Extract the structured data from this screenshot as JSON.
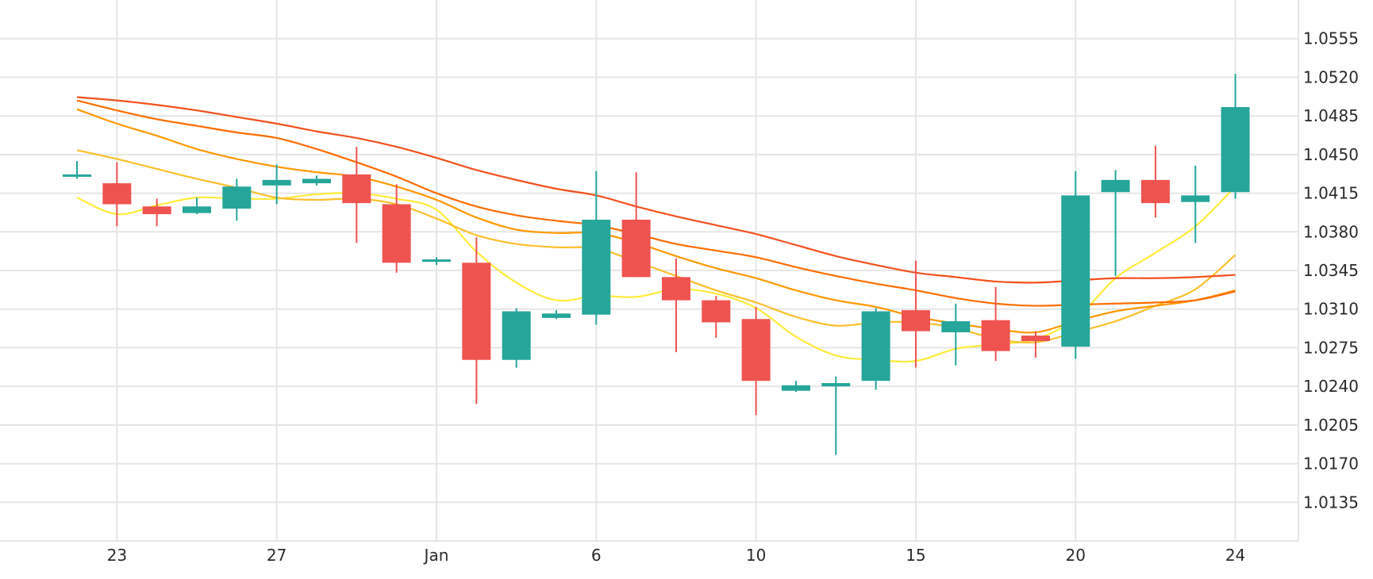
{
  "chart_data": {
    "type": "candlestick",
    "x_tick_labels": [
      "23",
      "27",
      "Jan",
      "6",
      "10",
      "15",
      "20",
      "24"
    ],
    "y_tick_labels": [
      "1.0555",
      "1.0520",
      "1.0485",
      "1.0450",
      "1.0415",
      "1.0380",
      "1.0345",
      "1.0310",
      "1.0275",
      "1.0240",
      "1.0205",
      "1.0170",
      "1.0135"
    ],
    "ylim": [
      1.01,
      1.059
    ],
    "grid": true,
    "colors": {
      "up": "#26a69a",
      "down": "#ef5350",
      "grid": "#e6e6e6"
    },
    "candles": [
      {
        "date": "Dec 22",
        "open": 1.043,
        "high": 1.0444,
        "low": 1.0428,
        "close": 1.0432
      },
      {
        "date": "Dec 23",
        "open": 1.0424,
        "high": 1.0443,
        "low": 1.0385,
        "close": 1.0405
      },
      {
        "date": "Dec 24",
        "open": 1.0403,
        "high": 1.041,
        "low": 1.0385,
        "close": 1.0396
      },
      {
        "date": "Dec 25",
        "open": 1.0397,
        "high": 1.0411,
        "low": 1.0396,
        "close": 1.0403
      },
      {
        "date": "Dec 26",
        "open": 1.0401,
        "high": 1.0428,
        "low": 1.039,
        "close": 1.0421
      },
      {
        "date": "Dec 27",
        "open": 1.0422,
        "high": 1.0441,
        "low": 1.0405,
        "close": 1.0427
      },
      {
        "date": "Dec 28",
        "open": 1.0424,
        "high": 1.0431,
        "low": 1.0422,
        "close": 1.0428
      },
      {
        "date": "Dec 29",
        "open": 1.0432,
        "high": 1.0457,
        "low": 1.037,
        "close": 1.0406
      },
      {
        "date": "Dec 30",
        "open": 1.0405,
        "high": 1.0423,
        "low": 1.0343,
        "close": 1.0352
      },
      {
        "date": "Dec 31",
        "open": 1.0353,
        "high": 1.0357,
        "low": 1.035,
        "close": 1.0355
      },
      {
        "date": "Jan 2",
        "open": 1.0352,
        "high": 1.0375,
        "low": 1.0224,
        "close": 1.0264
      },
      {
        "date": "Jan 3",
        "open": 1.0264,
        "high": 1.0311,
        "low": 1.0257,
        "close": 1.0308
      },
      {
        "date": "Jan 4",
        "open": 1.0302,
        "high": 1.0309,
        "low": 1.0301,
        "close": 1.0306
      },
      {
        "date": "Jan 6",
        "open": 1.0305,
        "high": 1.0435,
        "low": 1.0296,
        "close": 1.0391
      },
      {
        "date": "Jan 7",
        "open": 1.0391,
        "high": 1.0434,
        "low": 1.0339,
        "close": 1.0339
      },
      {
        "date": "Jan 8",
        "open": 1.0339,
        "high": 1.0356,
        "low": 1.0271,
        "close": 1.0318
      },
      {
        "date": "Jan 9",
        "open": 1.0318,
        "high": 1.0322,
        "low": 1.0284,
        "close": 1.0298
      },
      {
        "date": "Jan 10",
        "open": 1.0301,
        "high": 1.0312,
        "low": 1.0214,
        "close": 1.0245
      },
      {
        "date": "Jan 11",
        "open": 1.0236,
        "high": 1.0245,
        "low": 1.0235,
        "close": 1.0241
      },
      {
        "date": "Jan 13",
        "open": 1.024,
        "high": 1.0249,
        "low": 1.0178,
        "close": 1.0243
      },
      {
        "date": "Jan 14",
        "open": 1.0245,
        "high": 1.0311,
        "low": 1.0237,
        "close": 1.0308
      },
      {
        "date": "Jan 15",
        "open": 1.0309,
        "high": 1.0354,
        "low": 1.0257,
        "close": 1.029
      },
      {
        "date": "Jan 16",
        "open": 1.0289,
        "high": 1.0315,
        "low": 1.0259,
        "close": 1.0299
      },
      {
        "date": "Jan 17",
        "open": 1.03,
        "high": 1.033,
        "low": 1.0263,
        "close": 1.0272
      },
      {
        "date": "Jan 18",
        "open": 1.0286,
        "high": 1.029,
        "low": 1.0266,
        "close": 1.0281
      },
      {
        "date": "Jan 20",
        "open": 1.0276,
        "high": 1.0435,
        "low": 1.0265,
        "close": 1.0413
      },
      {
        "date": "Jan 21",
        "open": 1.0416,
        "high": 1.0436,
        "low": 1.034,
        "close": 1.0427
      },
      {
        "date": "Jan 22",
        "open": 1.0427,
        "high": 1.0458,
        "low": 1.0393,
        "close": 1.0406
      },
      {
        "date": "Jan 23",
        "open": 1.0407,
        "high": 1.044,
        "low": 1.037,
        "close": 1.0413
      },
      {
        "date": "Jan 24",
        "open": 1.0416,
        "high": 1.0523,
        "low": 1.041,
        "close": 1.0493
      }
    ],
    "moving_averages": [
      {
        "color": "#ffeb3b",
        "values": [
          1.0411,
          1.0396,
          1.0404,
          1.0411,
          1.041,
          1.041,
          1.0414,
          1.0415,
          1.041,
          1.04,
          1.0362,
          1.0334,
          1.0318,
          1.0322,
          1.0321,
          1.0328,
          1.0324,
          1.0311,
          1.0285,
          1.0268,
          1.0264,
          1.0263,
          1.0274,
          1.0278,
          1.0283,
          1.0301,
          1.0338,
          1.0361,
          1.0385,
          1.0421
        ]
      },
      {
        "color": "#fbc02d",
        "values": [
          1.0454,
          1.0446,
          1.0437,
          1.0428,
          1.042,
          1.0411,
          1.0409,
          1.041,
          1.0405,
          1.0392,
          1.0377,
          1.0369,
          1.0366,
          1.0365,
          1.0353,
          1.034,
          1.0327,
          1.0316,
          1.0303,
          1.0295,
          1.0298,
          1.0298,
          1.0293,
          1.0283,
          1.028,
          1.0289,
          1.0299,
          1.0313,
          1.0328,
          1.0359
        ]
      },
      {
        "color": "#ff9800",
        "values": [
          1.0491,
          1.0478,
          1.0467,
          1.0455,
          1.0446,
          1.0439,
          1.0434,
          1.043,
          1.0421,
          1.0409,
          1.0393,
          1.0382,
          1.0379,
          1.0379,
          1.037,
          1.0358,
          1.0347,
          1.0338,
          1.0327,
          1.0318,
          1.0312,
          1.0303,
          1.0297,
          1.0292,
          1.0289,
          1.0299,
          1.0308,
          1.0313,
          1.0318,
          1.0327
        ]
      },
      {
        "color": "#ff6d00",
        "values": [
          1.0499,
          1.049,
          1.0482,
          1.0476,
          1.047,
          1.0465,
          1.0455,
          1.0443,
          1.043,
          1.0415,
          1.0403,
          1.0395,
          1.039,
          1.0386,
          1.0378,
          1.0369,
          1.0363,
          1.0357,
          1.0348,
          1.034,
          1.0333,
          1.0327,
          1.032,
          1.0315,
          1.0313,
          1.0314,
          1.0315,
          1.0316,
          1.0318,
          1.0326
        ]
      },
      {
        "color": "#f4511e",
        "values": [
          1.0502,
          1.0499,
          1.0495,
          1.049,
          1.0484,
          1.0478,
          1.0471,
          1.0465,
          1.0457,
          1.0447,
          1.0436,
          1.0427,
          1.0419,
          1.0413,
          1.0403,
          1.0394,
          1.0386,
          1.0378,
          1.0368,
          1.0358,
          1.035,
          1.0343,
          1.0339,
          1.0335,
          1.0334,
          1.0336,
          1.0338,
          1.0338,
          1.0339,
          1.0341
        ]
      }
    ]
  }
}
